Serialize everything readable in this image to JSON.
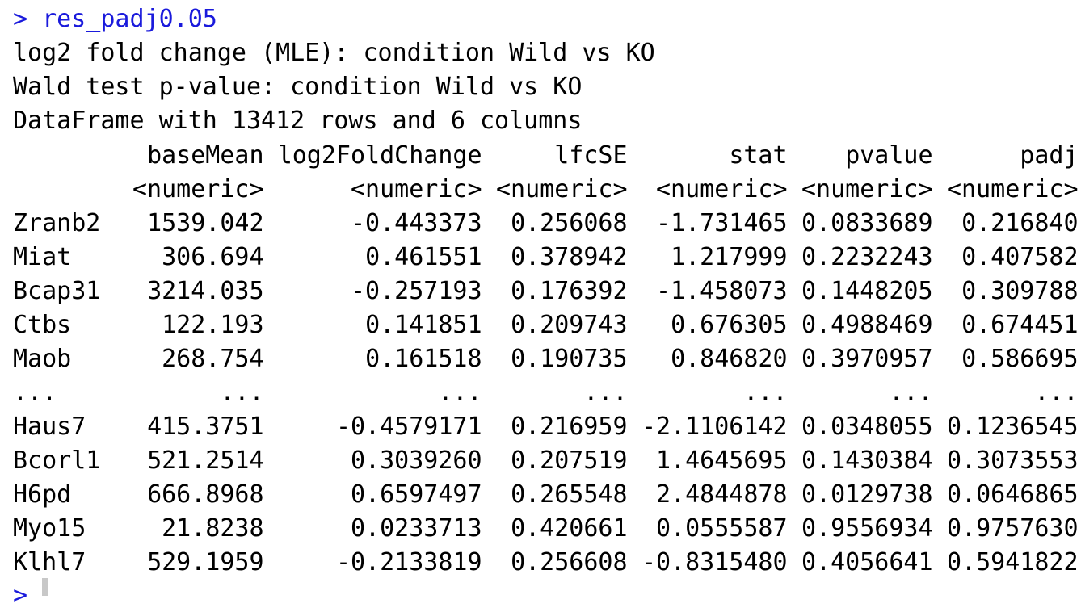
{
  "console": {
    "prompt_symbol": ">",
    "command": "res_padj0.05",
    "header_lines": [
      "log2 fold change (MLE): condition Wild vs KO",
      "Wald test p-value: condition Wild vs KO",
      "DataFrame with 13412 rows and 6 columns"
    ],
    "colors": {
      "command": "#1a1adc",
      "output": "#000000",
      "cursor": "#c8c8c8"
    }
  },
  "table": {
    "columns": [
      "baseMean",
      "log2FoldChange",
      "lfcSE",
      "stat",
      "pvalue",
      "padj"
    ],
    "types": [
      "<numeric>",
      "<numeric>",
      "<numeric>",
      "<numeric>",
      "<numeric>",
      "<numeric>"
    ],
    "rows": [
      {
        "name": "Zranb2",
        "values": [
          "1539.042",
          "-0.443373",
          "0.256068",
          "-1.731465",
          "0.0833689",
          "0.216840"
        ]
      },
      {
        "name": "Miat",
        "values": [
          "306.694",
          "0.461551",
          "0.378942",
          "1.217999",
          "0.2232243",
          "0.407582"
        ]
      },
      {
        "name": "Bcap31",
        "values": [
          "3214.035",
          "-0.257193",
          "0.176392",
          "-1.458073",
          "0.1448205",
          "0.309788"
        ]
      },
      {
        "name": "Ctbs",
        "values": [
          "122.193",
          "0.141851",
          "0.209743",
          "0.676305",
          "0.4988469",
          "0.674451"
        ]
      },
      {
        "name": "Maob",
        "values": [
          "268.754",
          "0.161518",
          "0.190735",
          "0.846820",
          "0.3970957",
          "0.586695"
        ]
      },
      {
        "name": "...",
        "values": [
          "...",
          "...",
          "...",
          "...",
          "...",
          "..."
        ]
      },
      {
        "name": "Haus7",
        "values": [
          "415.3751",
          "-0.4579171",
          "0.216959",
          "-2.1106142",
          "0.0348055",
          "0.1236545"
        ]
      },
      {
        "name": "Bcorl1",
        "values": [
          "521.2514",
          "0.3039260",
          "0.207519",
          "1.4645695",
          "0.1430384",
          "0.3073553"
        ]
      },
      {
        "name": "H6pd",
        "values": [
          "666.8968",
          "0.6597497",
          "0.265548",
          "2.4844878",
          "0.0129738",
          "0.0646865"
        ]
      },
      {
        "name": "Myo15",
        "values": [
          "21.8238",
          "0.0233713",
          "0.420661",
          "0.0555587",
          "0.9556934",
          "0.9757630"
        ]
      },
      {
        "name": "Klhl7",
        "values": [
          "529.1959",
          "-0.2133819",
          "0.256608",
          "-0.8315480",
          "0.4056641",
          "0.5941822"
        ]
      }
    ]
  }
}
